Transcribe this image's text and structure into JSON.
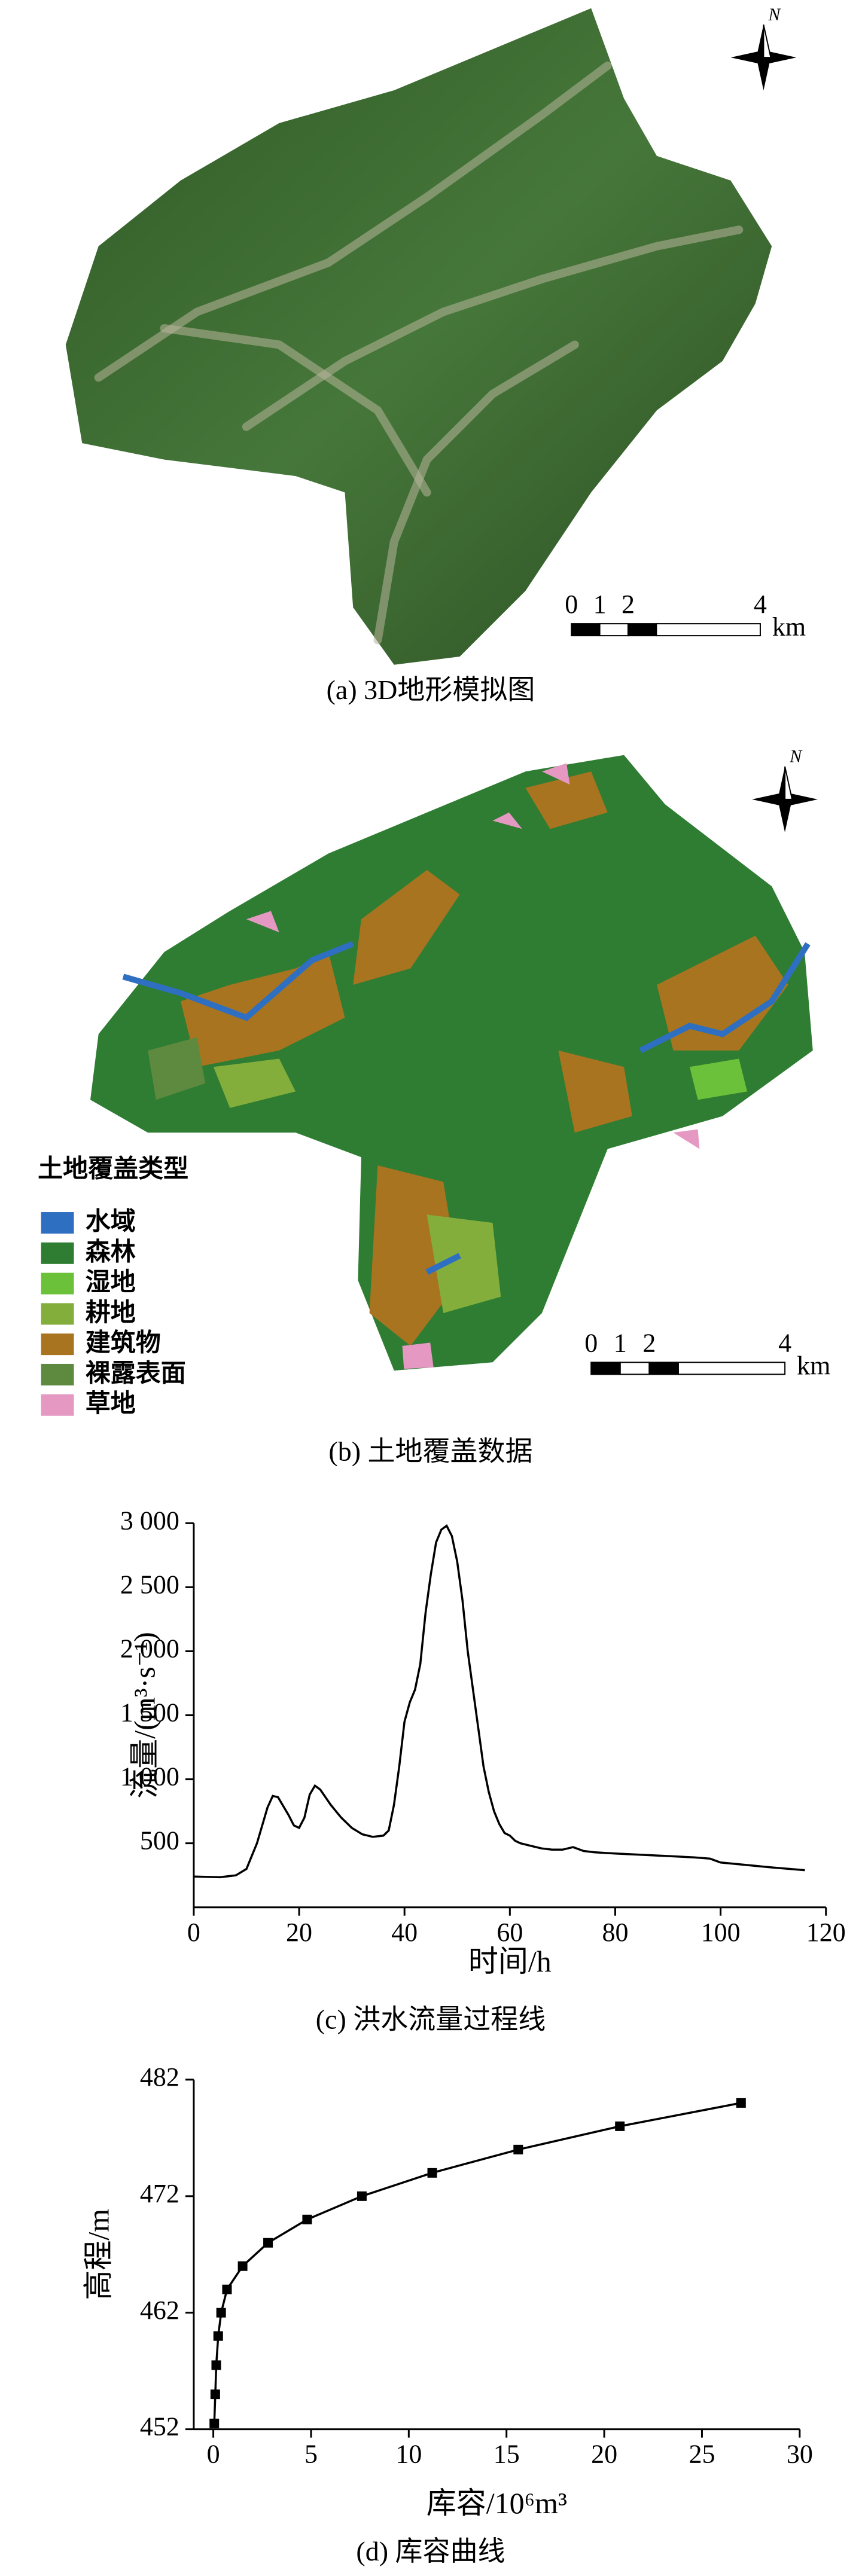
{
  "map_a": {
    "north": "N",
    "scale_labels": [
      "0",
      "1",
      "2",
      "4"
    ],
    "scale_unit": "km",
    "caption": "(a) 3D地形模拟图"
  },
  "map_b": {
    "north": "N",
    "legend_title": "土地覆盖类型",
    "legend": [
      {
        "name": "水域",
        "color": "#2f6fc1"
      },
      {
        "name": "森林",
        "color": "#2e7d32"
      },
      {
        "name": "湿地",
        "color": "#6cc13a"
      },
      {
        "name": "耕地",
        "color": "#84ae3c"
      },
      {
        "name": "建筑物",
        "color": "#a87420"
      },
      {
        "name": "裸露表面",
        "color": "#5e8a40"
      },
      {
        "name": "草地",
        "color": "#e598c2"
      }
    ],
    "scale_labels": [
      "0",
      "1",
      "2",
      "4"
    ],
    "scale_unit": "km",
    "caption": "(b) 土地覆盖数据"
  },
  "chart_data": [
    {
      "type": "line",
      "color": "#000000",
      "x": [
        0,
        5,
        8,
        10,
        12,
        14,
        15,
        16,
        18,
        19,
        20,
        21,
        22,
        23,
        24,
        26,
        28,
        30,
        32,
        34,
        36,
        37,
        38,
        39,
        40,
        41,
        42,
        43,
        44,
        45,
        46,
        47,
        48,
        49,
        50,
        51,
        52,
        53,
        54,
        55,
        56,
        57,
        58,
        59,
        60,
        61,
        62,
        64,
        66,
        68,
        70,
        72,
        74,
        76,
        80,
        85,
        90,
        95,
        98,
        100,
        105,
        110,
        116
      ],
      "values": [
        240,
        235,
        250,
        300,
        500,
        780,
        870,
        860,
        720,
        640,
        620,
        700,
        880,
        950,
        920,
        800,
        700,
        620,
        570,
        550,
        560,
        600,
        800,
        1100,
        1450,
        1600,
        1700,
        1900,
        2300,
        2600,
        2850,
        2950,
        2980,
        2900,
        2700,
        2400,
        2000,
        1700,
        1400,
        1100,
        900,
        750,
        650,
        580,
        560,
        520,
        500,
        480,
        460,
        450,
        450,
        470,
        440,
        430,
        420,
        410,
        400,
        390,
        380,
        350,
        330,
        310,
        290
      ],
      "xlim": [
        0,
        120
      ],
      "xticks": [
        0,
        20,
        40,
        60,
        80,
        100,
        120
      ],
      "ylim": [
        0,
        3000
      ],
      "yticks": [
        500,
        {
          "value": 1000,
          "label": "1 000"
        },
        {
          "value": 1500,
          "label": "1 500"
        },
        {
          "value": 2000,
          "label": "2 000"
        },
        {
          "value": 2500,
          "label": "2 500"
        },
        {
          "value": 3000,
          "label": "3 000"
        }
      ],
      "xlabel": "时间/h",
      "ylabel": "流量/(m³·s⁻¹)",
      "caption": "(c) 洪水流量过程线"
    },
    {
      "type": "line",
      "marker": "square",
      "color": "#000000",
      "x": [
        0.05,
        0.1,
        0.15,
        0.25,
        0.4,
        0.7,
        1.5,
        2.8,
        4.8,
        7.6,
        11.2,
        15.6,
        20.8,
        27.0
      ],
      "values": [
        452.5,
        455,
        457.5,
        460,
        462,
        464,
        466,
        468,
        470,
        472,
        474,
        476,
        478,
        480
      ],
      "xlim": [
        -1,
        30
      ],
      "xticks": [
        0,
        5,
        10,
        15,
        20,
        25,
        30
      ],
      "ylim": [
        452,
        482
      ],
      "yticks": [
        452,
        462,
        472,
        482
      ],
      "xlabel": "库容/10⁶m³",
      "ylabel": "高程/m",
      "caption": "(d) 库容曲线"
    }
  ]
}
